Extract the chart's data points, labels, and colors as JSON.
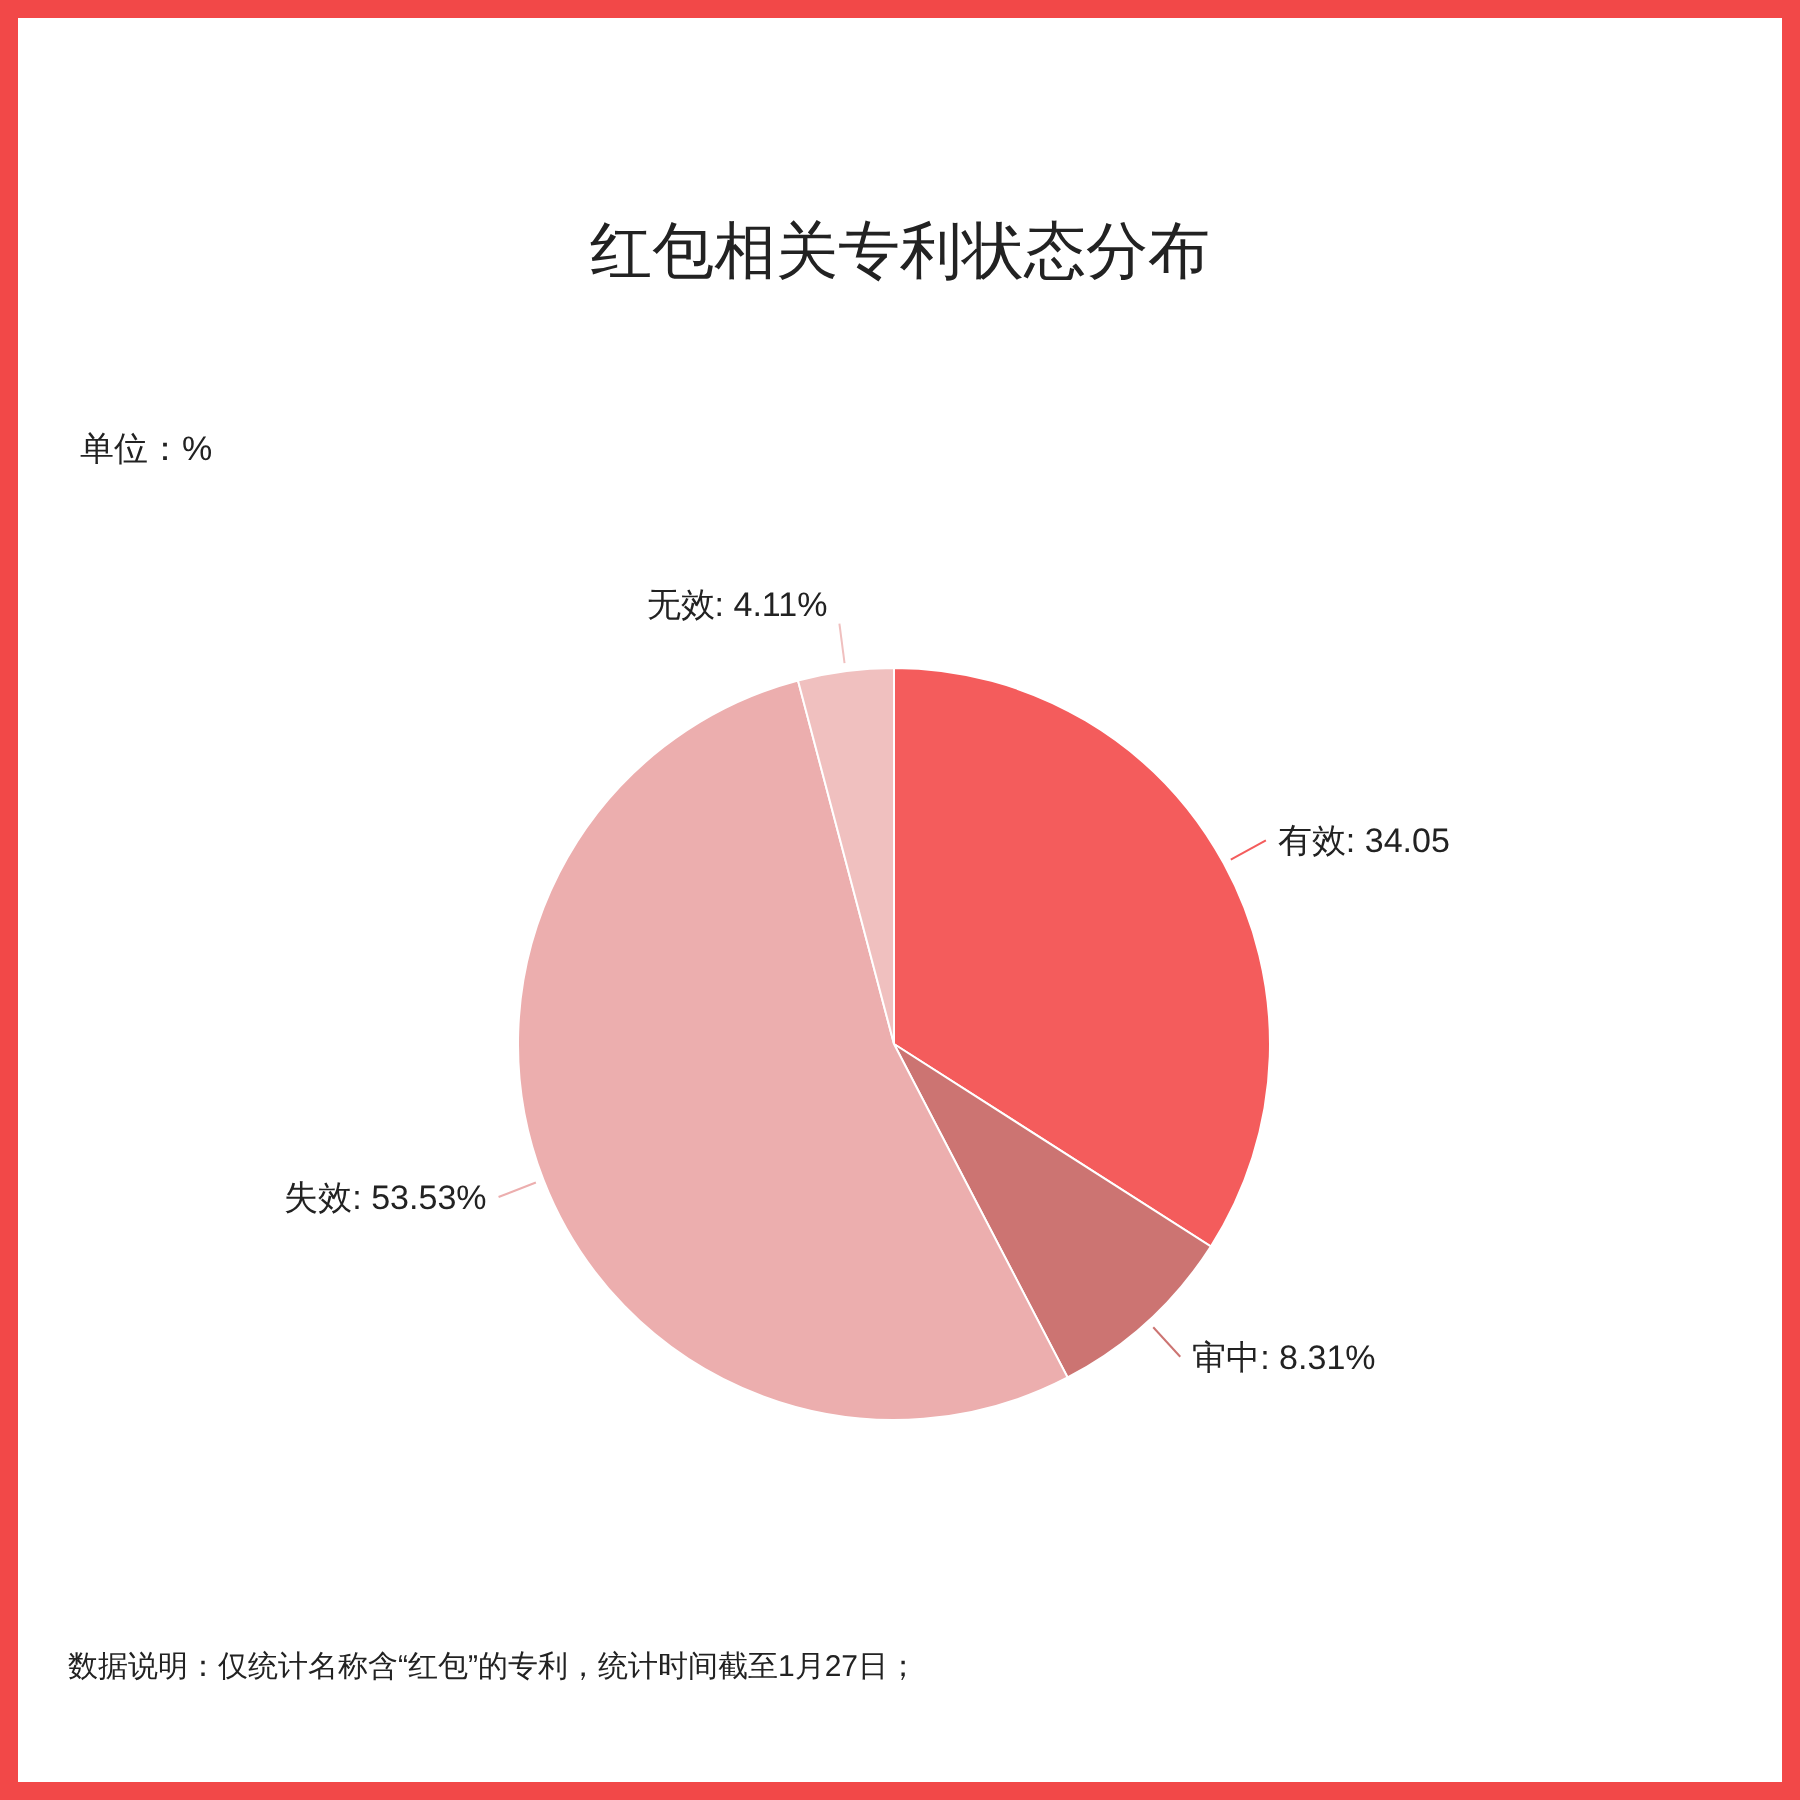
{
  "chart_data": {
    "type": "pie",
    "title": "红包相关专利状态分布",
    "categories": [
      "有效",
      "审中",
      "失效",
      "无效"
    ],
    "values": [
      34.05,
      8.31,
      53.53,
      4.11
    ],
    "colors": [
      "#f45c5c",
      "#cc7472",
      "#ecaeae",
      "#f0c0bf"
    ],
    "value_labels": [
      "34.05",
      "8.31%",
      "53.53%",
      "4.11%"
    ],
    "annotations": [
      "单位：%",
      "数据说明：仅统计名称含“红包”的专利，统计时间截至1月27日；"
    ]
  }
}
